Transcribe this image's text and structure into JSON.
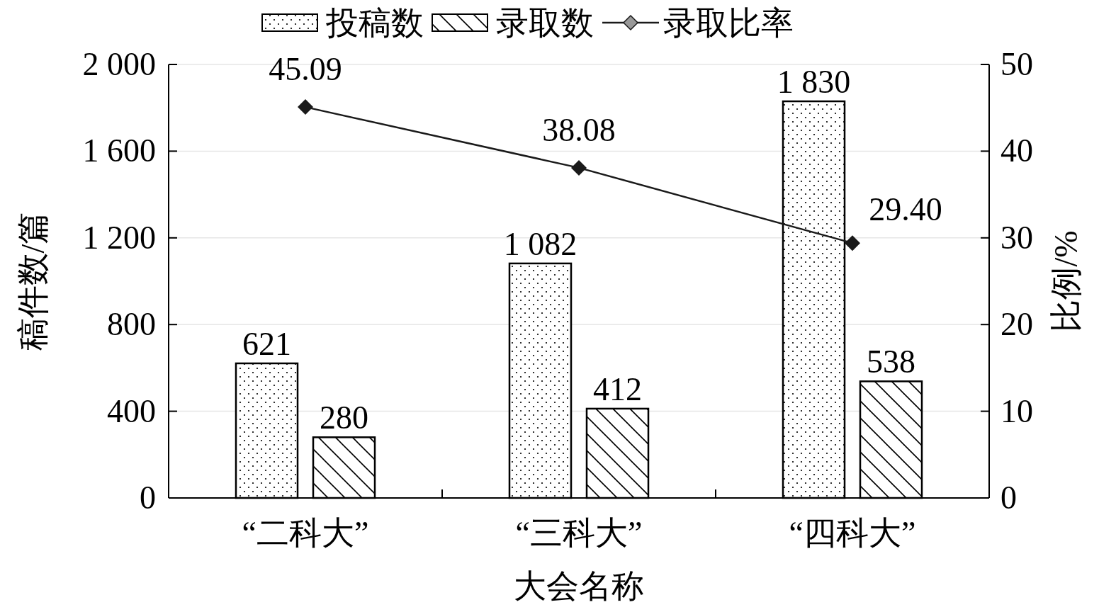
{
  "chart_data": {
    "type": "bar",
    "xlabel": "大会名称",
    "ylabel": "稿件数/篇",
    "y2label": "比例/%",
    "categories": [
      "“二科大”",
      "“三科大”",
      "“四科大”"
    ],
    "series": [
      {
        "name": "投稿数",
        "color": "#000000",
        "values": [
          621,
          1082,
          1830
        ],
        "value_labels": [
          "621",
          "1 082",
          "1 830"
        ]
      },
      {
        "name": "录取数",
        "color": "#000000",
        "values": [
          280,
          412,
          538
        ]
      },
      {
        "name": "录取比率",
        "type": "line",
        "axis": "y2",
        "color": "#1a1a1a",
        "marker": "diamond",
        "values": [
          45.09,
          38.08,
          29.4
        ],
        "value_labels": [
          "45.09",
          "38.08",
          "29.40"
        ]
      }
    ],
    "ylim": [
      0,
      2000
    ],
    "yticks": [
      0,
      400,
      800,
      {
        "value": 1200,
        "label": "1 200"
      },
      {
        "value": 1600,
        "label": "1 600"
      },
      {
        "value": 2000,
        "label": "2 000"
      }
    ],
    "y2lim": [
      0,
      50
    ],
    "y2ticks": [
      0,
      10,
      20,
      30,
      40,
      50
    ],
    "data_labels": true,
    "grid": "y",
    "legend": "top"
  }
}
